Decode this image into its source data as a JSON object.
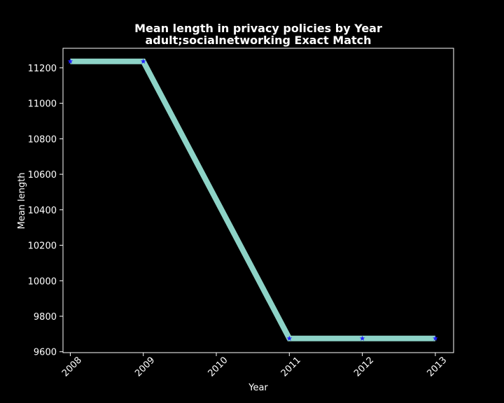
{
  "chart_data": {
    "type": "line",
    "title": "Mean length in privacy policies by Year",
    "subtitle": "adult;socialnetworking Exact Match",
    "xlabel": "Year",
    "ylabel": "Mean length",
    "x": [
      2008,
      2009,
      2011,
      2012,
      2013
    ],
    "x_ticks": [
      "2008",
      "2009",
      "2010",
      "2011",
      "2012",
      "2013"
    ],
    "xlim": [
      2007.9,
      2013.25
    ],
    "y_ticks": [
      9600,
      9800,
      10000,
      10200,
      10400,
      10600,
      10800,
      11000,
      11200
    ],
    "ylim": [
      9595,
      11310
    ],
    "grid": false,
    "series": [
      {
        "values": [
          11236,
          11236,
          9675,
          9675,
          9675
        ]
      }
    ],
    "colors": {
      "background": "#000000",
      "line": "#8dd3c7",
      "marker": "#1f1fff",
      "text": "#ffffff",
      "axes": "#ffffff"
    }
  }
}
